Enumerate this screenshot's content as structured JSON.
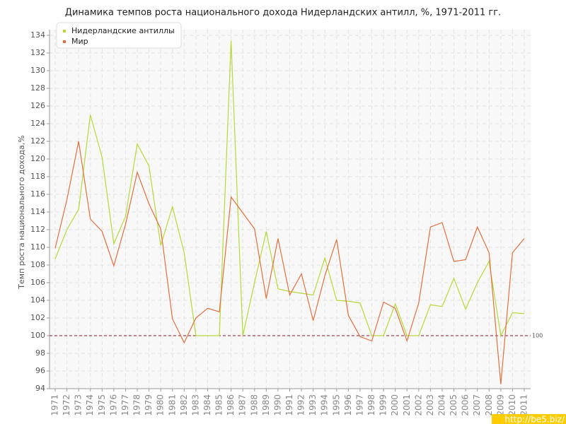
{
  "chart_data": {
    "type": "line",
    "title": "Динамика темпов роста национального дохода Нидерландских антилл, %, 1971-2011 гг.",
    "y_label": "Темп роста национального дохода,%",
    "categories": [
      "1971",
      "1972",
      "1973",
      "1974",
      "1975",
      "1976",
      "1977",
      "1978",
      "1979",
      "1980",
      "1981",
      "1982",
      "1983",
      "1984",
      "1985",
      "1986",
      "1987",
      "1988",
      "1989",
      "1990",
      "1991",
      "1992",
      "1993",
      "1994",
      "1995",
      "1996",
      "1997",
      "1998",
      "1999",
      "2000",
      "2001",
      "2002",
      "2003",
      "2004",
      "2005",
      "2006",
      "2007",
      "2008",
      "2009",
      "2010",
      "2011"
    ],
    "series": [
      {
        "name": "Нидерландские антиллы",
        "color": "#b5d93a",
        "values": [
          108.7,
          112,
          114.3,
          125,
          120.2,
          110.4,
          113.5,
          121.7,
          119.2,
          110.2,
          114.6,
          109.4,
          100,
          100,
          100,
          133.4,
          100,
          106,
          111.8,
          105.3,
          105,
          104.8,
          104.6,
          108.8,
          104,
          103.9,
          103.7,
          100,
          100,
          103.6,
          100,
          100,
          103.5,
          103.3,
          106.5,
          103,
          106,
          108.4,
          100,
          102.6,
          102.5
        ]
      },
      {
        "name": "Мир",
        "color": "#e07040",
        "values": [
          109.9,
          115.4,
          122,
          113.2,
          111.8,
          107.9,
          112.6,
          118.5,
          114.9,
          112.1,
          101.9,
          99.2,
          102,
          103.1,
          102.7,
          115.7,
          113.9,
          112.1,
          104.2,
          111,
          104.6,
          107,
          101.7,
          106.8,
          110.9,
          102.3,
          99.9,
          99.4,
          103.8,
          103.1,
          99.4,
          103.7,
          112.3,
          112.8,
          108.4,
          108.6,
          112.3,
          109.4,
          94.5,
          109.4,
          111
        ]
      }
    ],
    "ylim": [
      94,
      134
    ],
    "yticks": [
      94,
      96,
      98,
      100,
      102,
      104,
      106,
      108,
      110,
      112,
      114,
      116,
      118,
      120,
      122,
      124,
      126,
      128,
      130,
      132,
      134
    ],
    "grid": true,
    "reference_line": 100,
    "reference_color": "#8b1a2a",
    "watermark": "http://be5.biz/"
  }
}
